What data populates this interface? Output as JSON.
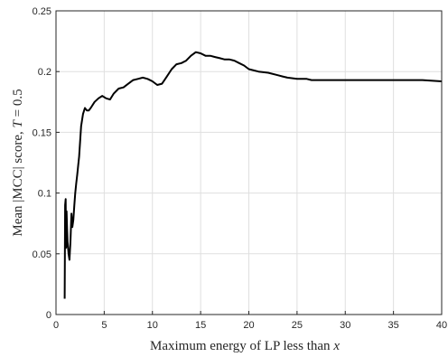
{
  "chart_data": {
    "type": "line",
    "title": "",
    "xlabel_parts": [
      "Maximum energy of LP less than ",
      "x"
    ],
    "ylabel_parts": [
      "Mean |MCC| score, ",
      "T",
      " = 0.5"
    ],
    "xlim": [
      0,
      40
    ],
    "ylim": [
      0,
      0.25
    ],
    "xticks": [
      0,
      5,
      10,
      15,
      20,
      25,
      30,
      35,
      40
    ],
    "yticks": [
      0,
      0.05,
      0.1,
      0.15,
      0.2,
      0.25
    ],
    "xtick_labels": [
      "0",
      "5",
      "10",
      "15",
      "20",
      "25",
      "30",
      "35",
      "40"
    ],
    "ytick_labels": [
      "0",
      "0.05",
      "0.1",
      "0.15",
      "0.2",
      "0.25"
    ],
    "grid": true,
    "series": [
      {
        "color": "#000000",
        "x": [
          0.9,
          0.95,
          1.0,
          1.05,
          1.1,
          1.15,
          1.2,
          1.3,
          1.4,
          1.5,
          1.6,
          1.7,
          1.8,
          1.9,
          2.0,
          2.1,
          2.2,
          2.3,
          2.4,
          2.6,
          2.8,
          3.0,
          3.2,
          3.4,
          3.6,
          4.0,
          4.4,
          4.8,
          5.2,
          5.6,
          6.0,
          6.5,
          7.0,
          7.5,
          8.0,
          8.5,
          9.0,
          9.5,
          10.0,
          10.5,
          11.0,
          11.5,
          12.0,
          12.5,
          13.0,
          13.5,
          14.0,
          14.5,
          15.0,
          15.5,
          16.0,
          16.5,
          17.0,
          17.5,
          18.0,
          18.5,
          19.0,
          19.5,
          20.0,
          21.0,
          22.0,
          23.0,
          23.5,
          24.0,
          25.0,
          26.0,
          26.5,
          28.0,
          30.0,
          32.0,
          34.0,
          36.0,
          38.0,
          40.0
        ],
        "y": [
          0.013,
          0.09,
          0.095,
          0.055,
          0.085,
          0.07,
          0.06,
          0.05,
          0.045,
          0.06,
          0.083,
          0.072,
          0.078,
          0.09,
          0.1,
          0.108,
          0.115,
          0.123,
          0.13,
          0.155,
          0.165,
          0.17,
          0.168,
          0.168,
          0.17,
          0.175,
          0.178,
          0.18,
          0.178,
          0.177,
          0.182,
          0.186,
          0.187,
          0.19,
          0.193,
          0.194,
          0.195,
          0.194,
          0.192,
          0.189,
          0.19,
          0.196,
          0.202,
          0.206,
          0.207,
          0.209,
          0.213,
          0.216,
          0.215,
          0.213,
          0.213,
          0.212,
          0.211,
          0.21,
          0.21,
          0.209,
          0.207,
          0.205,
          0.202,
          0.2,
          0.199,
          0.197,
          0.196,
          0.195,
          0.194,
          0.194,
          0.193,
          0.193,
          0.193,
          0.193,
          0.193,
          0.193,
          0.193,
          0.192
        ]
      }
    ]
  }
}
